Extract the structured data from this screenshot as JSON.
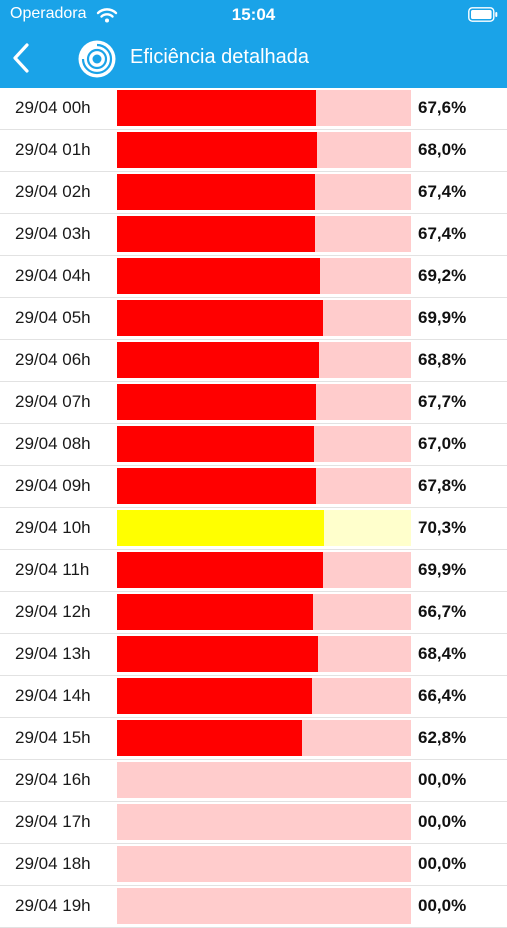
{
  "status_bar": {
    "carrier": "Operadora",
    "time": "15:04",
    "wifi_icon": "wifi-icon",
    "battery_icon": "battery-icon"
  },
  "nav": {
    "back_icon": "chevron-left-icon",
    "logo_icon": "app-logo-icon",
    "title": "Eficiência detalhada"
  },
  "colors": {
    "header_bg": "#1aa3e8",
    "red_fill": "#ff0000",
    "red_track": "#ffcccc",
    "yellow_fill": "#ffff00",
    "yellow_track": "#ffffcc"
  },
  "rows": [
    {
      "label": "29/04 00h",
      "value": "67,6%",
      "efficiency": 67.6,
      "status": "red"
    },
    {
      "label": "29/04 01h",
      "value": "68,0%",
      "efficiency": 68.0,
      "status": "red"
    },
    {
      "label": "29/04 02h",
      "value": "67,4%",
      "efficiency": 67.4,
      "status": "red"
    },
    {
      "label": "29/04 03h",
      "value": "67,4%",
      "efficiency": 67.4,
      "status": "red"
    },
    {
      "label": "29/04 04h",
      "value": "69,2%",
      "efficiency": 69.2,
      "status": "red"
    },
    {
      "label": "29/04 05h",
      "value": "69,9%",
      "efficiency": 69.9,
      "status": "red"
    },
    {
      "label": "29/04 06h",
      "value": "68,8%",
      "efficiency": 68.8,
      "status": "red"
    },
    {
      "label": "29/04 07h",
      "value": "67,7%",
      "efficiency": 67.7,
      "status": "red"
    },
    {
      "label": "29/04 08h",
      "value": "67,0%",
      "efficiency": 67.0,
      "status": "red"
    },
    {
      "label": "29/04 09h",
      "value": "67,8%",
      "efficiency": 67.8,
      "status": "red"
    },
    {
      "label": "29/04 10h",
      "value": "70,3%",
      "efficiency": 70.3,
      "status": "yellow"
    },
    {
      "label": "29/04 11h",
      "value": "69,9%",
      "efficiency": 69.9,
      "status": "red"
    },
    {
      "label": "29/04 12h",
      "value": "66,7%",
      "efficiency": 66.7,
      "status": "red"
    },
    {
      "label": "29/04 13h",
      "value": "68,4%",
      "efficiency": 68.4,
      "status": "red"
    },
    {
      "label": "29/04 14h",
      "value": "66,4%",
      "efficiency": 66.4,
      "status": "red"
    },
    {
      "label": "29/04 15h",
      "value": "62,8%",
      "efficiency": 62.8,
      "status": "red"
    },
    {
      "label": "29/04 16h",
      "value": "00,0%",
      "efficiency": 0,
      "status": "red"
    },
    {
      "label": "29/04 17h",
      "value": "00,0%",
      "efficiency": 0,
      "status": "red"
    },
    {
      "label": "29/04 18h",
      "value": "00,0%",
      "efficiency": 0,
      "status": "red"
    },
    {
      "label": "29/04 19h",
      "value": "00,0%",
      "efficiency": 0,
      "status": "red"
    }
  ]
}
